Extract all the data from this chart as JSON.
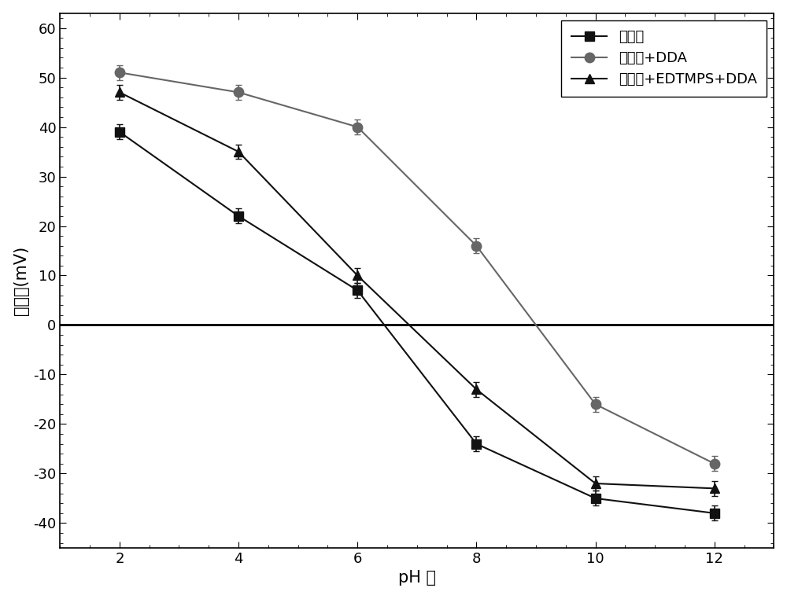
{
  "x": [
    2,
    4,
    6,
    8,
    10,
    12
  ],
  "series1": {
    "label": "菱镁矿",
    "y": [
      39,
      22,
      7,
      -24,
      -35,
      -38
    ],
    "yerr": [
      1.5,
      1.5,
      1.5,
      1.5,
      1.5,
      1.5
    ],
    "marker": "s",
    "color": "#111111",
    "markersize": 8,
    "linestyle": "-"
  },
  "series2": {
    "label": "菱镁矿+DDA",
    "y": [
      51,
      47,
      40,
      16,
      -16,
      -28
    ],
    "yerr": [
      1.5,
      1.5,
      1.5,
      1.5,
      1.5,
      1.5
    ],
    "marker": "o",
    "color": "#666666",
    "markersize": 9,
    "linestyle": "-"
  },
  "series3": {
    "label": "菱镁矿+EDTMPS+DDA",
    "y": [
      47,
      35,
      10,
      -13,
      -32,
      -33
    ],
    "yerr": [
      1.5,
      1.5,
      1.5,
      1.5,
      1.5,
      1.5
    ],
    "marker": "^",
    "color": "#111111",
    "markersize": 9,
    "linestyle": "-"
  },
  "xlabel": "pH 値",
  "ylabel": "动电位(mV)",
  "xlim": [
    1,
    13
  ],
  "ylim": [
    -45,
    63
  ],
  "xticks": [
    2,
    4,
    6,
    8,
    10,
    12
  ],
  "yticks": [
    -40,
    -30,
    -20,
    -10,
    0,
    10,
    20,
    30,
    40,
    50,
    60
  ],
  "hline_y": 0,
  "legend_loc": "upper right",
  "figsize": [
    10.0,
    7.62
  ],
  "dpi": 100,
  "background_color": "#ffffff"
}
